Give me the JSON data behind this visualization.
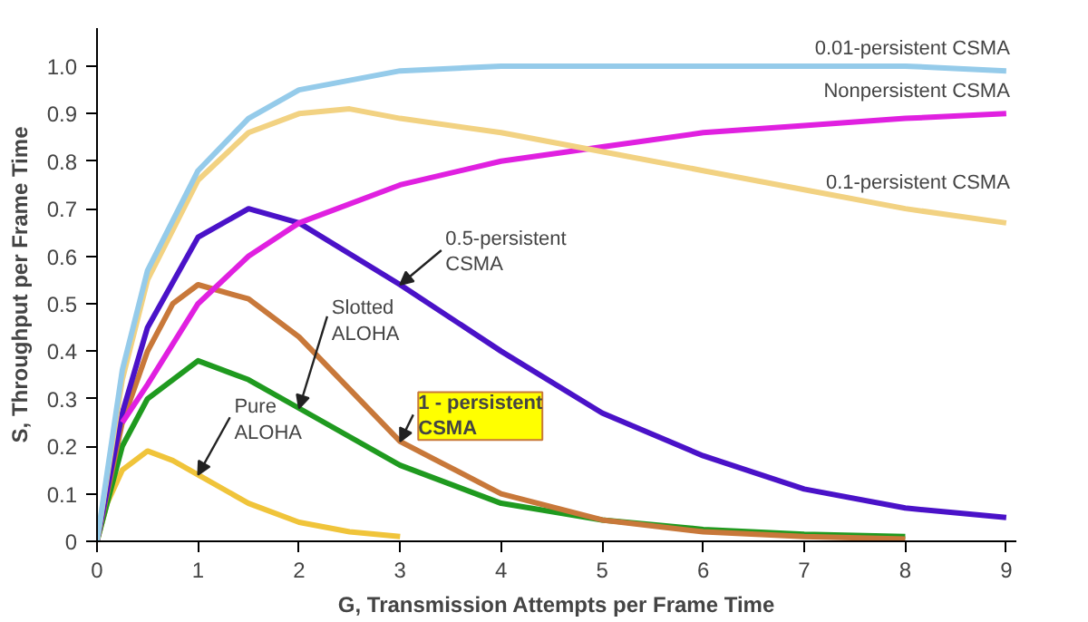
{
  "chart_data": {
    "type": "line",
    "xlabel": "G, Transmission Attempts per Frame Time",
    "ylabel": "S, Throughput per Frame Time",
    "xlim": [
      0,
      9.1
    ],
    "ylim": [
      0,
      1.08
    ],
    "xticks": [
      0,
      1,
      2,
      3,
      4,
      5,
      6,
      7,
      8,
      9
    ],
    "yticks": [
      {
        "value": 0,
        "label": "0"
      },
      0.1,
      0.2,
      0.3,
      0.4,
      0.5,
      0.6,
      0.7,
      0.8,
      0.9,
      {
        "value": 1.0,
        "label": "1.0"
      }
    ],
    "grid": false,
    "legend": false,
    "line_style": "solid",
    "series": [
      {
        "name": "Pure\nALOHA",
        "color": "#f0c43a",
        "x": [
          0,
          0.1,
          0.25,
          0.5,
          0.75,
          1,
          1.5,
          2,
          2.5,
          3
        ],
        "values": [
          0,
          0.08,
          0.15,
          0.19,
          0.17,
          0.14,
          0.08,
          0.04,
          0.02,
          0.01
        ]
      },
      {
        "name": "Slotted\nALOHA",
        "color": "#1f9a1f",
        "x": [
          0,
          0.25,
          0.5,
          1,
          1.5,
          2,
          3,
          4,
          5,
          6,
          7,
          8
        ],
        "values": [
          0,
          0.2,
          0.3,
          0.38,
          0.34,
          0.28,
          0.16,
          0.08,
          0.045,
          0.025,
          0.015,
          0.01
        ]
      },
      {
        "name": "1 - persistent\nCSMA",
        "color": "#c8783a",
        "x": [
          0,
          0.25,
          0.5,
          0.75,
          1,
          1.5,
          2,
          3,
          4,
          5,
          6,
          7,
          8
        ],
        "values": [
          0,
          0.25,
          0.4,
          0.5,
          0.54,
          0.51,
          0.43,
          0.21,
          0.1,
          0.045,
          0.02,
          0.01,
          0.005
        ]
      },
      {
        "name": "0.5-persistent\nCSMA",
        "color": "#4a12c8",
        "x": [
          0,
          0.25,
          0.5,
          1,
          1.5,
          2,
          3,
          4,
          5,
          6,
          7,
          8,
          9
        ],
        "values": [
          0,
          0.27,
          0.45,
          0.64,
          0.7,
          0.67,
          0.54,
          0.4,
          0.27,
          0.18,
          0.11,
          0.07,
          0.05
        ]
      },
      {
        "name": "Nonpersistent CSMA",
        "color": "#e020e0",
        "x": [
          0.25,
          0.5,
          1,
          1.5,
          2,
          3,
          4,
          5,
          6,
          7,
          8,
          9
        ],
        "values": [
          0.25,
          0.33,
          0.5,
          0.6,
          0.67,
          0.75,
          0.8,
          0.83,
          0.86,
          0.875,
          0.89,
          0.9
        ]
      },
      {
        "name": "0.1-persistent CSMA",
        "color": "#f2d282",
        "x": [
          0,
          0.25,
          0.5,
          1,
          1.5,
          2,
          2.5,
          3,
          4,
          5,
          6,
          7,
          8,
          9
        ],
        "values": [
          0,
          0.34,
          0.55,
          0.76,
          0.86,
          0.9,
          0.91,
          0.89,
          0.86,
          0.82,
          0.78,
          0.74,
          0.7,
          0.67
        ]
      },
      {
        "name": "0.01-persistent CSMA",
        "color": "#95cbea",
        "x": [
          0,
          0.25,
          0.5,
          1,
          1.5,
          2,
          3,
          4,
          5,
          6,
          7,
          8,
          9
        ],
        "values": [
          0,
          0.36,
          0.57,
          0.78,
          0.89,
          0.95,
          0.99,
          1.0,
          1.0,
          1.0,
          1.0,
          1.0,
          0.99
        ]
      }
    ]
  }
}
